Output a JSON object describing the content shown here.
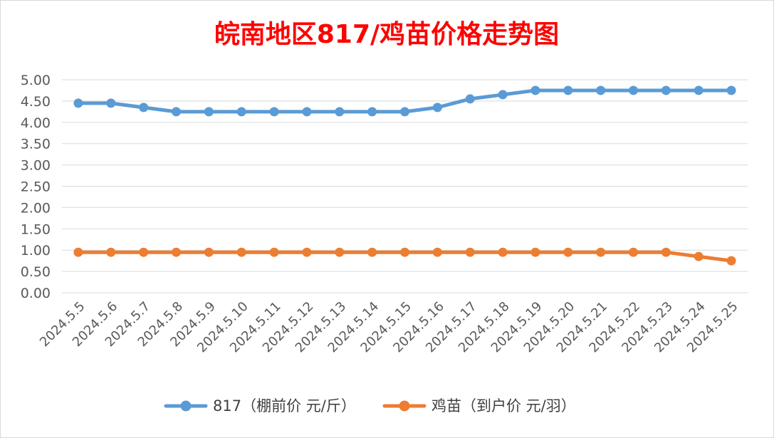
{
  "chart_data": {
    "type": "line",
    "title": "皖南地区817/鸡苗价格走势图",
    "categories": [
      "2024.5.5",
      "2024.5.6",
      "2024.5.7",
      "2024.5.8",
      "2024.5.9",
      "2024.5.10",
      "2024.5.11",
      "2024.5.12",
      "2024.5.13",
      "2024.5.14",
      "2024.5.15",
      "2024.5.16",
      "2024.5.17",
      "2024.5.18",
      "2024.5.19",
      "2024.5.20",
      "2024.5.21",
      "2024.5.22",
      "2024.5.23",
      "2024.5.24",
      "2024.5.25"
    ],
    "series": [
      {
        "name": "817（棚前价 元/斤）",
        "color": "#5b9bd5",
        "values": [
          4.45,
          4.45,
          4.35,
          4.25,
          4.25,
          4.25,
          4.25,
          4.25,
          4.25,
          4.25,
          4.25,
          4.35,
          4.55,
          4.65,
          4.75,
          4.75,
          4.75,
          4.75,
          4.75,
          4.75,
          4.75
        ]
      },
      {
        "name": "鸡苗（到户价 元/羽）",
        "color": "#ed7d31",
        "values": [
          0.95,
          0.95,
          0.95,
          0.95,
          0.95,
          0.95,
          0.95,
          0.95,
          0.95,
          0.95,
          0.95,
          0.95,
          0.95,
          0.95,
          0.95,
          0.95,
          0.95,
          0.95,
          0.95,
          0.85,
          0.75
        ]
      }
    ],
    "ylim": [
      0,
      5
    ],
    "yticks": [
      "0.00",
      "0.50",
      "1.00",
      "1.50",
      "2.00",
      "2.50",
      "3.00",
      "3.50",
      "4.00",
      "4.50",
      "5.00"
    ],
    "grid": true,
    "legend": "bottom",
    "title_color": "#ff0000"
  }
}
